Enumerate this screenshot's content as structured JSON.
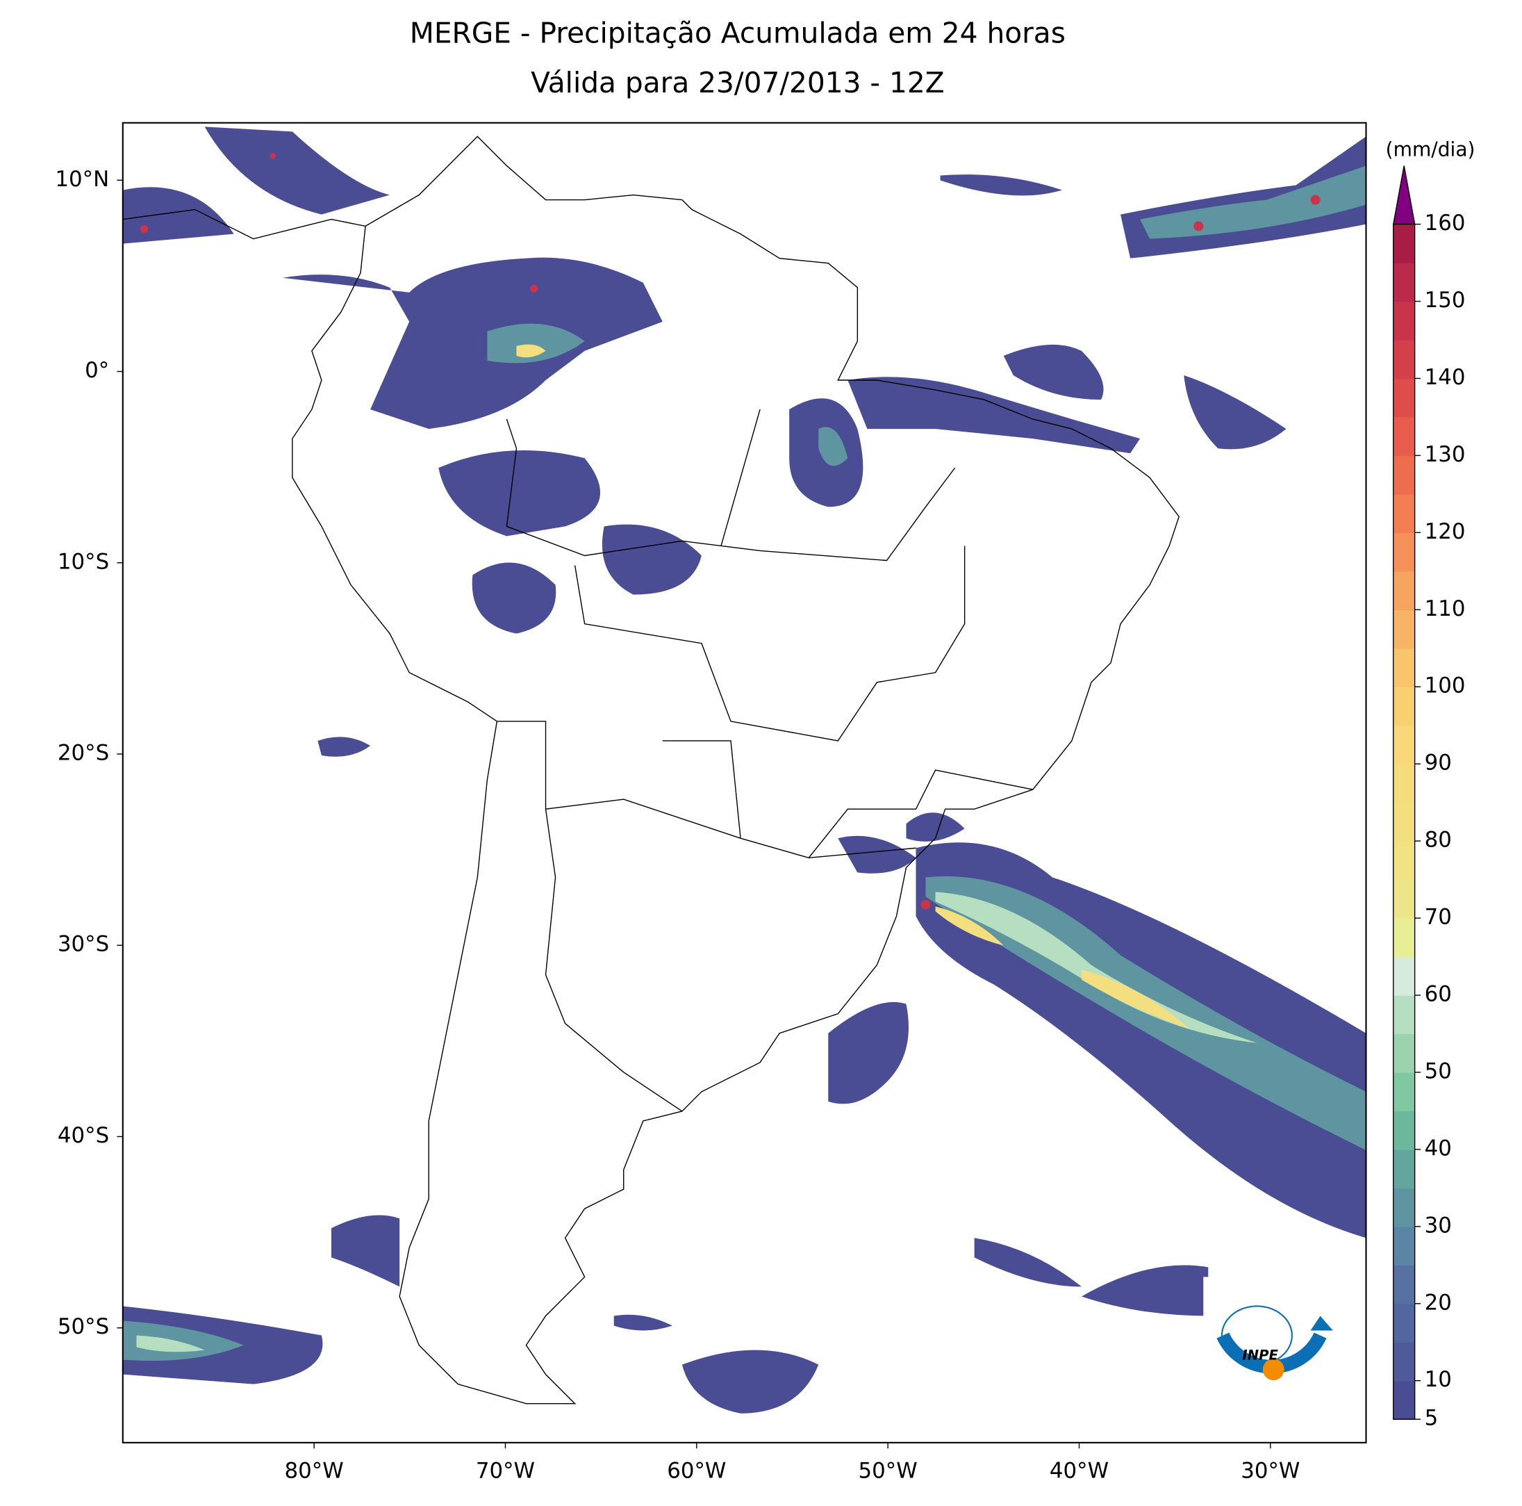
{
  "map": {
    "title": "MERGE - Precipitação Acumulada em 24 horas",
    "subtitle": "Válida para 23/07/2013 - 12Z",
    "xlim": [
      -90,
      -25
    ],
    "ylim": [
      -56,
      13
    ],
    "lon_ticks": [
      {
        "value": -80,
        "label": "80°W"
      },
      {
        "value": -70,
        "label": "70°W"
      },
      {
        "value": -60,
        "label": "60°W"
      },
      {
        "value": -50,
        "label": "50°W"
      },
      {
        "value": -40,
        "label": "40°W"
      },
      {
        "value": -30,
        "label": "30°W"
      }
    ],
    "lat_ticks": [
      {
        "value": 10,
        "label": "10°N"
      },
      {
        "value": 0,
        "label": "0°"
      },
      {
        "value": -10,
        "label": "10°S"
      },
      {
        "value": -20,
        "label": "20°S"
      },
      {
        "value": -30,
        "label": "30°S"
      },
      {
        "value": -40,
        "label": "40°S"
      },
      {
        "value": -50,
        "label": "50°S"
      }
    ],
    "colorbar": {
      "unit": "(mm/dia)",
      "clim": [
        5,
        160
      ],
      "ticks": [
        5,
        10,
        20,
        30,
        40,
        50,
        60,
        70,
        80,
        90,
        100,
        110,
        120,
        130,
        140,
        150,
        160
      ],
      "levels": [
        5,
        10,
        15,
        20,
        25,
        30,
        35,
        40,
        45,
        50,
        55,
        60,
        65,
        70,
        75,
        80,
        85,
        90,
        95,
        100,
        105,
        110,
        115,
        120,
        125,
        130,
        135,
        140,
        145,
        150,
        155,
        160
      ],
      "colors": [
        "#4a4c94",
        "#4f5a9b",
        "#53669f",
        "#5772a2",
        "#5b85a4",
        "#5e95a0",
        "#63a69d",
        "#6cb89c",
        "#80c8a2",
        "#9ad3ae",
        "#b6dfc1",
        "#d4ebde",
        "#e8ee95",
        "#eee58a",
        "#f1e284",
        "#f4df80",
        "#f6dc7c",
        "#f8d878",
        "#f9d070",
        "#f9c46c",
        "#f8b466",
        "#f7a461",
        "#f6905a",
        "#f37e54",
        "#ef6d4f",
        "#e75c4c",
        "#de4d4a",
        "#d4404a",
        "#c9344b",
        "#bb2a4b",
        "#a81c45"
      ],
      "extend_color": "#800080"
    },
    "logo_text": "INPE"
  }
}
